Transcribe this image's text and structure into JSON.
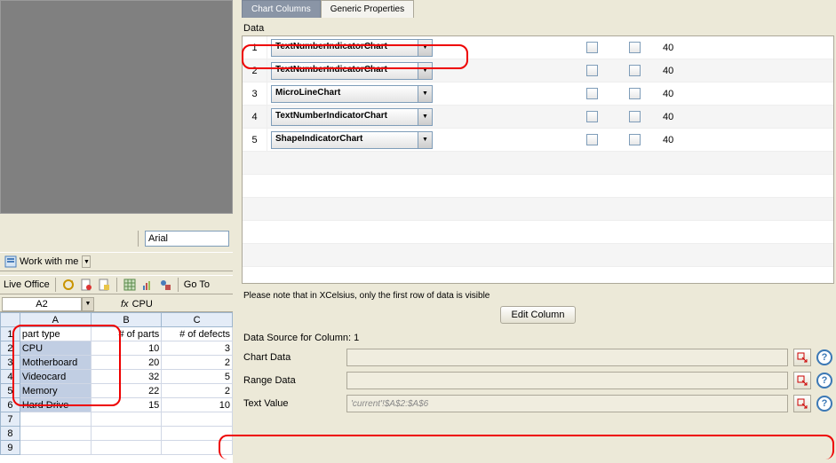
{
  "font": {
    "name": "Arial"
  },
  "workwithme": {
    "label": "Work with me"
  },
  "liveoffice": {
    "label": "Live Office",
    "goto": "Go To"
  },
  "namebox": {
    "cell": "A2",
    "fx": "fx",
    "value": "CPU"
  },
  "sheet": {
    "cols": [
      "A",
      "B",
      "C"
    ],
    "headers": [
      "part type",
      "# of parts",
      "# of defects"
    ],
    "rows": [
      [
        "CPU",
        10,
        3
      ],
      [
        "Motherboard",
        20,
        2
      ],
      [
        "Videocard",
        32,
        5
      ],
      [
        "Memory",
        22,
        2
      ],
      [
        "Hard Drive",
        15,
        10
      ]
    ]
  },
  "tabs": {
    "active": "Chart Columns",
    "other": "Generic Properties"
  },
  "grid": {
    "label": "Data",
    "rows": [
      {
        "n": 1,
        "type": "TextNumberIndicatorChart",
        "val": "40"
      },
      {
        "n": 2,
        "type": "TextNumberIndicatorChart",
        "val": "40"
      },
      {
        "n": 3,
        "type": "MicroLineChart",
        "val": "40"
      },
      {
        "n": 4,
        "type": "TextNumberIndicatorChart",
        "val": "40"
      },
      {
        "n": 5,
        "type": "ShapeIndicatorChart",
        "val": "40"
      }
    ]
  },
  "note": "Please note that in XCelsius, only the first row of data is visible",
  "editcol": "Edit Column",
  "ds": {
    "label": "Data Source for Column: 1"
  },
  "form": {
    "chartdata": "Chart Data",
    "rangedata": "Range Data",
    "textvalue": "Text Value",
    "textvalue_val": "'current'!$A$2:$A$6"
  },
  "colors": {
    "highlight": "#e00",
    "tab_active_bg": "#8a95a6"
  }
}
